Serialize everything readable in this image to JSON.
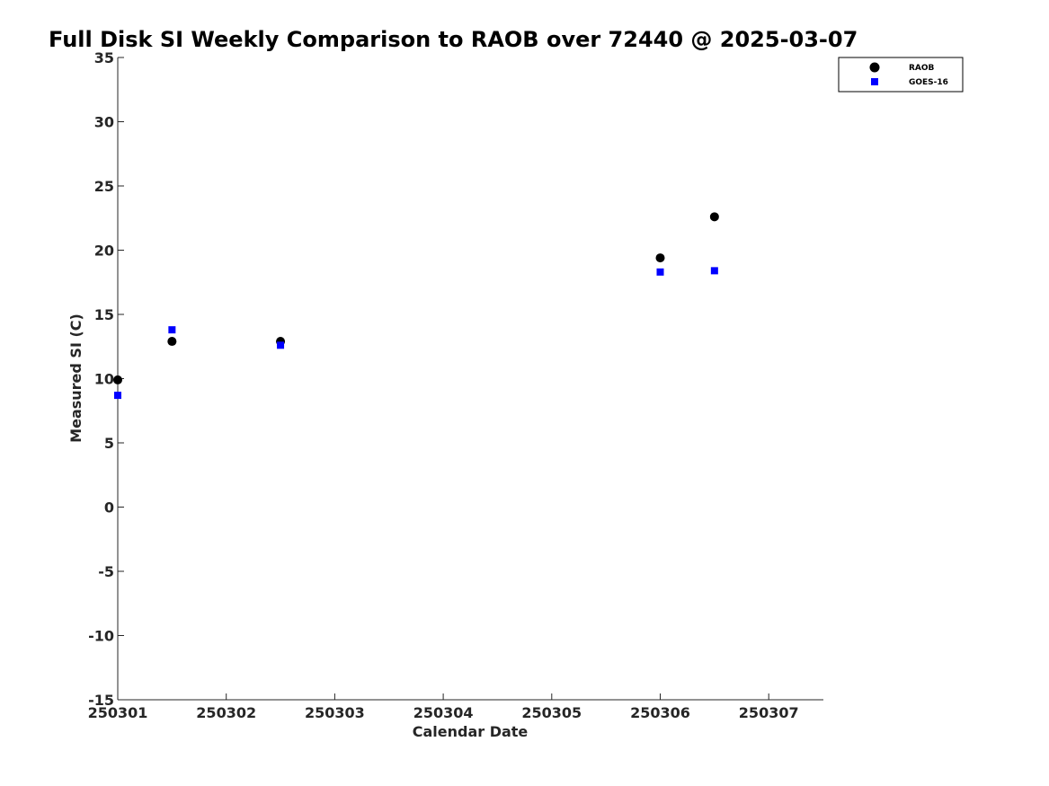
{
  "chart_data": {
    "type": "scatter",
    "title": "Full Disk SI Weekly Comparison to RAOB over 72440 @ 2025-03-07",
    "xlabel": "Calendar Date",
    "ylabel": "Measured SI (C)",
    "xlim": [
      0,
      6.5
    ],
    "ylim": [
      -15,
      35
    ],
    "x_ticks": [
      {
        "value": 0,
        "label": "250301"
      },
      {
        "value": 1,
        "label": "250302"
      },
      {
        "value": 2,
        "label": "250303"
      },
      {
        "value": 3,
        "label": "250304"
      },
      {
        "value": 4,
        "label": "250305"
      },
      {
        "value": 5,
        "label": "250306"
      },
      {
        "value": 6,
        "label": "250307"
      }
    ],
    "y_ticks": [
      35,
      30,
      25,
      20,
      15,
      10,
      5,
      0,
      -5,
      -10,
      -15
    ],
    "grid": false,
    "legend_position": "top-right",
    "series": [
      {
        "name": "RAOB",
        "marker": "circle",
        "color": "#000000",
        "x": [
          0,
          0.5,
          1.5,
          5,
          5.5
        ],
        "y": [
          9.9,
          12.9,
          12.9,
          19.4,
          22.6
        ]
      },
      {
        "name": "GOES-16",
        "marker": "square",
        "color": "#0000ff",
        "x": [
          0,
          0.5,
          1.5,
          5,
          5.5
        ],
        "y": [
          8.7,
          13.8,
          12.6,
          18.3,
          18.4
        ]
      }
    ]
  }
}
